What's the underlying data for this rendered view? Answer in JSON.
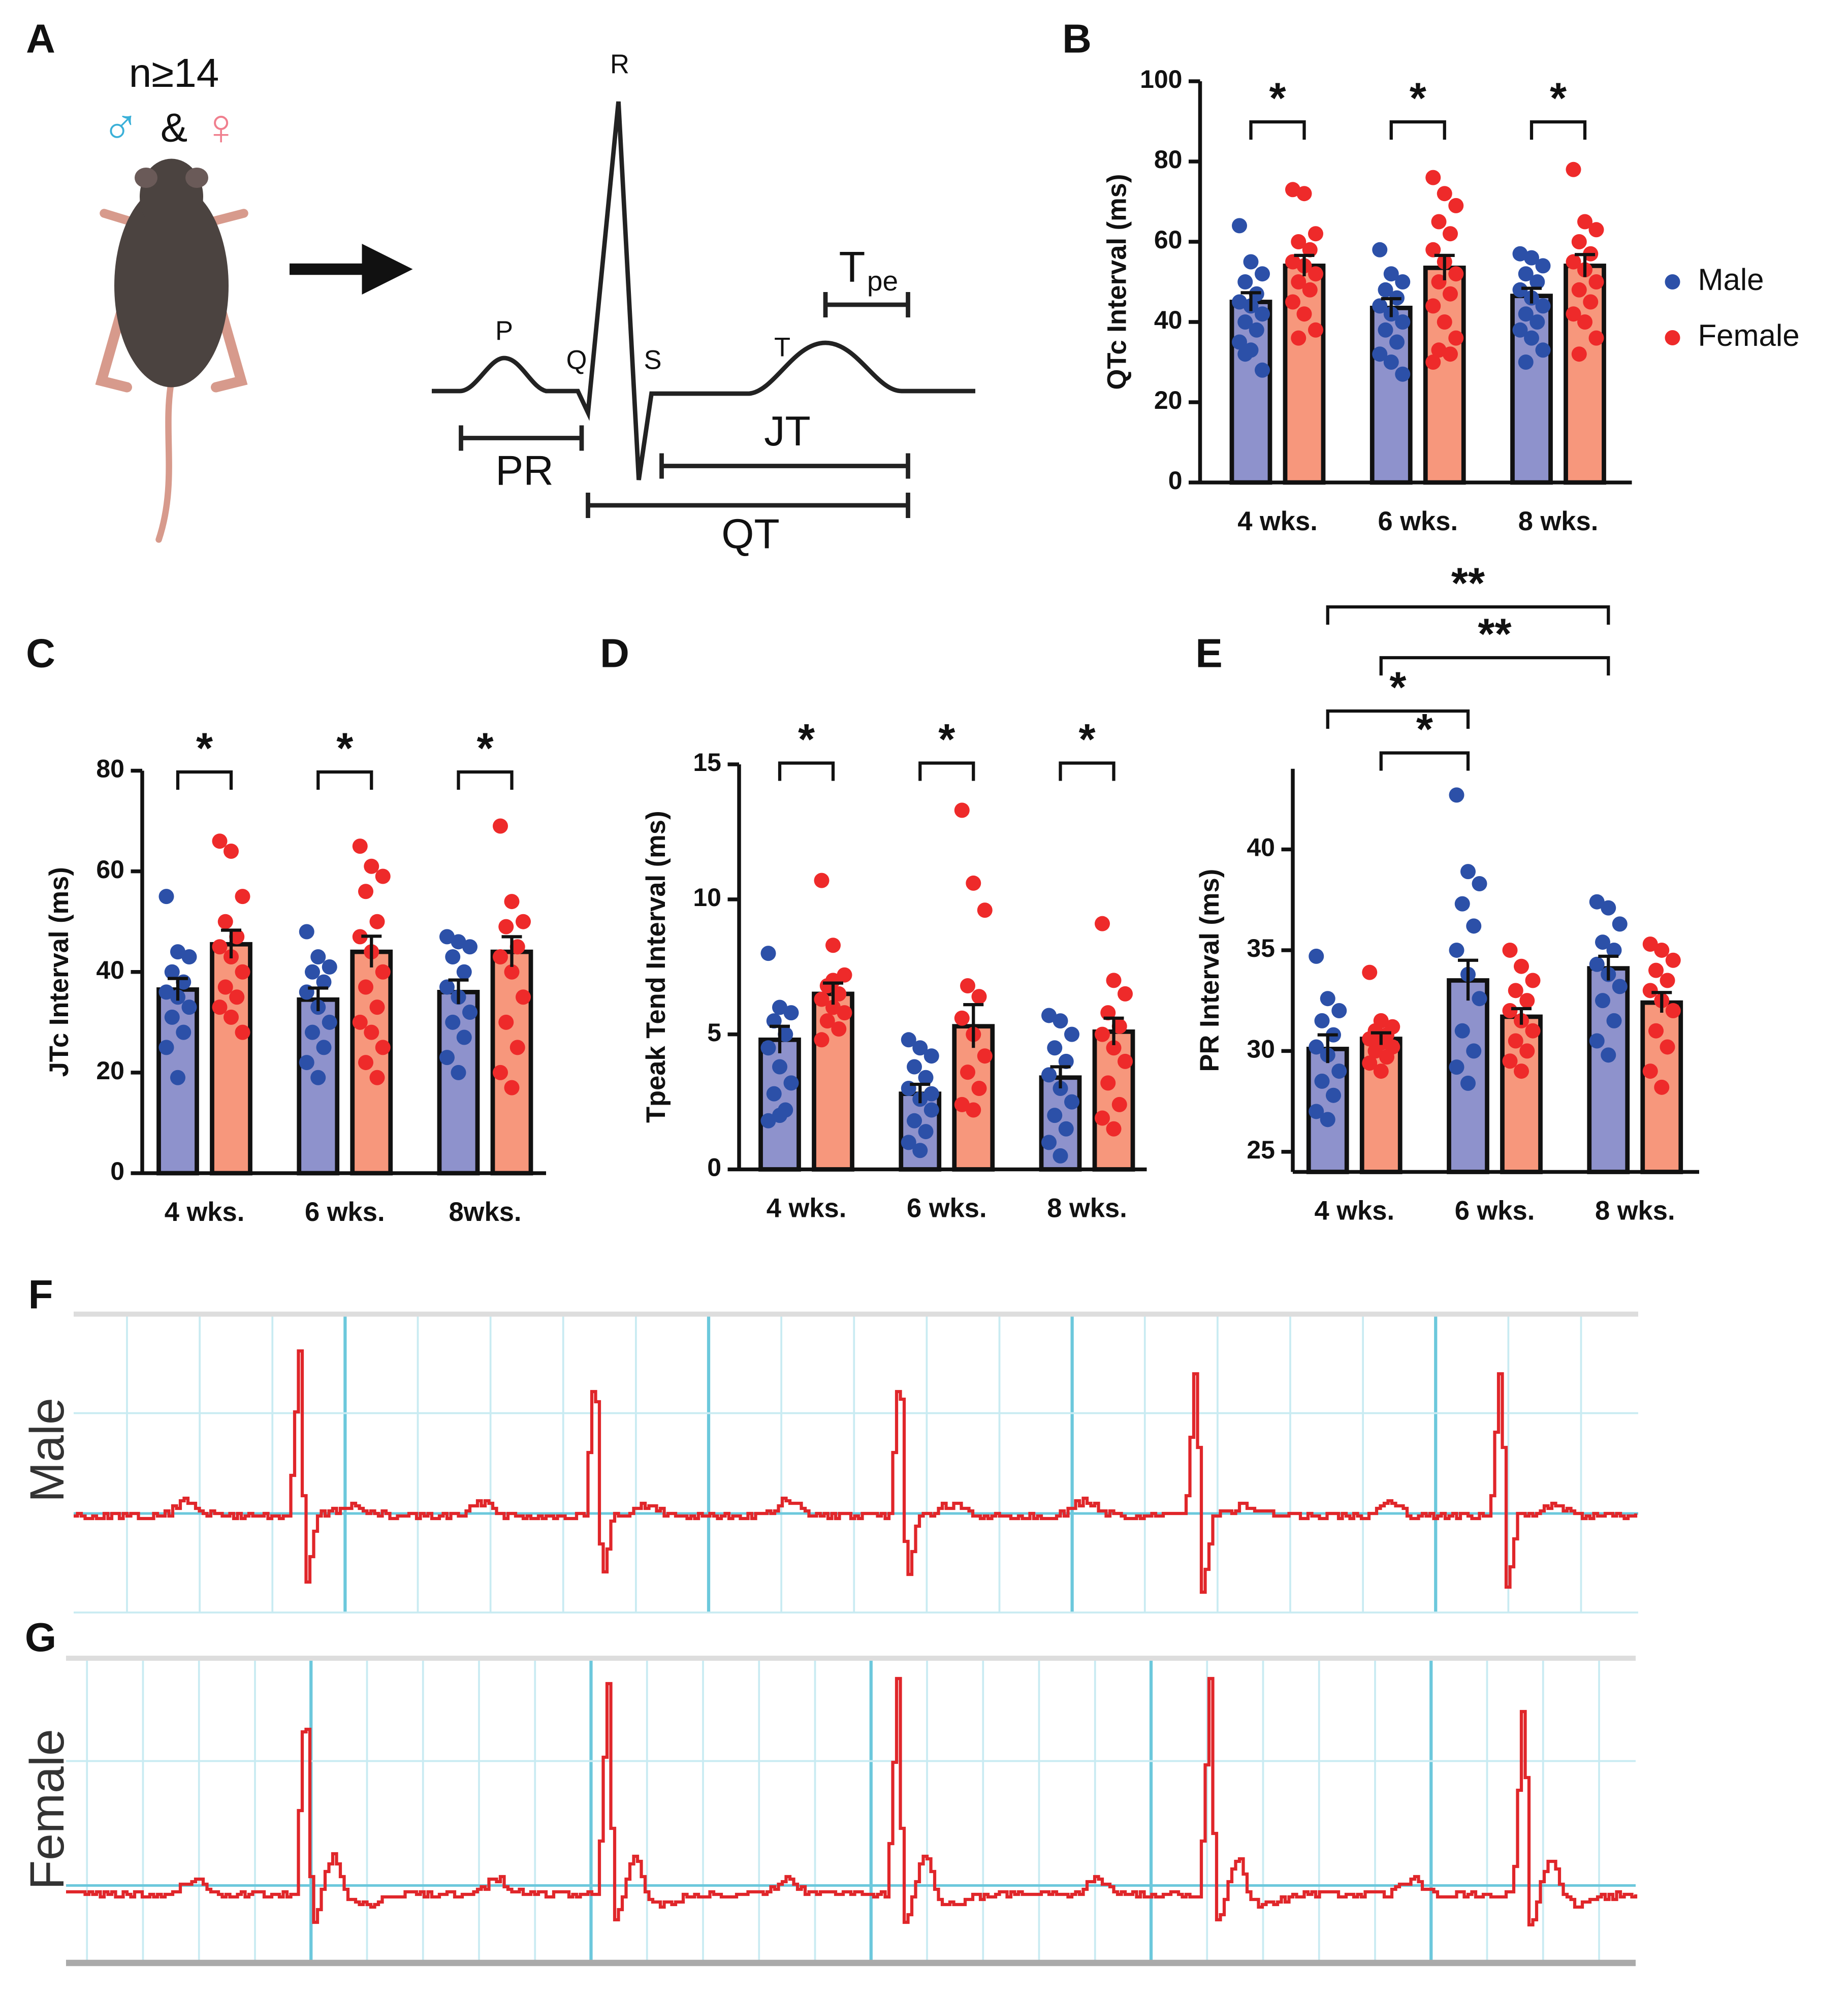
{
  "panel_a": {
    "label": "A",
    "n": "n≥14",
    "male_symbol": "♂",
    "and": "&",
    "female_symbol": "♀",
    "waves": [
      "P",
      "Q",
      "R",
      "S",
      "T"
    ],
    "tpe": {
      "main": "T",
      "sub": "pe"
    },
    "intervals": [
      "PR",
      "JT",
      "QT"
    ]
  },
  "chart_data": [
    {
      "panel": "B",
      "type": "bar",
      "ylabel": "QTc Interval (ms)",
      "categories": [
        "4 wks.",
        "6 wks.",
        "8 wks."
      ],
      "ylim": [
        0,
        100
      ],
      "yticks": [
        0,
        20,
        40,
        60,
        80,
        100
      ],
      "legend": "right",
      "series": [
        {
          "name": "Male",
          "color": "#2c50a8",
          "bar_color": "#8e92cc",
          "values": [
            45,
            43.5,
            46.5
          ],
          "errors": [
            2.3,
            2.3,
            1.9
          ],
          "points": [
            [
              64,
              55,
              52,
              50,
              47,
              45,
              44,
              42,
              40,
              38,
              35,
              33,
              28,
              32
            ],
            [
              58,
              52,
              50,
              48,
              46,
              44,
              42,
              40,
              38,
              35,
              32,
              30,
              27
            ],
            [
              57,
              56,
              54,
              52,
              50,
              48,
              46,
              44,
              42,
              40,
              38,
              36,
              33,
              30
            ]
          ]
        },
        {
          "name": "Female",
          "color": "#ee2a2a",
          "bar_color": "#f7977c",
          "values": [
            54,
            53.5,
            54
          ],
          "errors": [
            2.6,
            3.1,
            2.8
          ],
          "points": [
            [
              73,
              72,
              62,
              60,
              58,
              55,
              54,
              52,
              50,
              48,
              45,
              42,
              38,
              36
            ],
            [
              76,
              72,
              69,
              65,
              62,
              58,
              55,
              52,
              50,
              47,
              44,
              40,
              36,
              33,
              32,
              30
            ],
            [
              78,
              65,
              63,
              60,
              57,
              55,
              53,
              50,
              48,
              45,
              42,
              40,
              36,
              32
            ]
          ]
        }
      ],
      "comparisons": [
        {
          "label": "*",
          "from": [
            0,
            0
          ],
          "to": [
            0,
            1
          ]
        },
        {
          "label": "*",
          "from": [
            1,
            0
          ],
          "to": [
            1,
            1
          ]
        },
        {
          "label": "*",
          "from": [
            2,
            0
          ],
          "to": [
            2,
            1
          ]
        }
      ]
    },
    {
      "panel": "C",
      "type": "bar",
      "ylabel": "JTc Interval (ms)",
      "categories": [
        "4 wks.",
        "6 wks.",
        "8wks."
      ],
      "ylim": [
        0,
        80
      ],
      "yticks": [
        0,
        20,
        40,
        60,
        80
      ],
      "series": [
        {
          "name": "Male",
          "color": "#2c50a8",
          "bar_color": "#8e92cc",
          "values": [
            36.5,
            34.5,
            36
          ],
          "errors": [
            2.2,
            2.3,
            2.4
          ],
          "points": [
            [
              55,
              44,
              43,
              40,
              38,
              36,
              35,
              33,
              31,
              28,
              25,
              19
            ],
            [
              48,
              43,
              41,
              40,
              38,
              36,
              33,
              30,
              28,
              25,
              22,
              19
            ],
            [
              47,
              46,
              45,
              43,
              40,
              37,
              35,
              32,
              30,
              27,
              23,
              20
            ]
          ]
        },
        {
          "name": "Female",
          "color": "#ee2a2a",
          "bar_color": "#f7977c",
          "values": [
            45.5,
            44,
            44
          ],
          "errors": [
            2.8,
            3.1,
            3.0
          ],
          "points": [
            [
              66,
              64,
              55,
              50,
              47,
              45,
              43,
              40,
              37,
              35,
              33,
              31,
              28
            ],
            [
              65,
              61,
              59,
              56,
              50,
              47,
              44,
              40,
              37,
              33,
              30,
              28,
              25,
              22,
              19
            ],
            [
              69,
              54,
              50,
              49,
              45,
              43,
              40,
              35,
              30,
              25,
              20,
              17
            ]
          ]
        }
      ],
      "comparisons": [
        {
          "label": "*",
          "from": [
            0,
            0
          ],
          "to": [
            0,
            1
          ]
        },
        {
          "label": "*",
          "from": [
            1,
            0
          ],
          "to": [
            1,
            1
          ]
        },
        {
          "label": "*",
          "from": [
            2,
            0
          ],
          "to": [
            2,
            1
          ]
        }
      ]
    },
    {
      "panel": "D",
      "type": "bar",
      "ylabel": "Tpeak Tend Interval (ms)",
      "categories": [
        "4 wks.",
        "6 wks.",
        "8 wks."
      ],
      "ylim": [
        0,
        15
      ],
      "yticks": [
        0,
        5,
        10,
        15
      ],
      "series": [
        {
          "name": "Male",
          "color": "#2c50a8",
          "bar_color": "#8e92cc",
          "values": [
            4.8,
            2.8,
            3.4
          ],
          "errors": [
            0.5,
            0.35,
            0.4
          ],
          "points": [
            [
              8.0,
              6.0,
              5.8,
              5.5,
              5.0,
              4.5,
              3.8,
              3.2,
              2.8,
              2.2,
              1.8,
              2.0
            ],
            [
              4.8,
              4.5,
              4.2,
              3.8,
              3.4,
              3.0,
              2.6,
              2.2,
              1.8,
              1.4,
              1.0,
              0.7,
              2.8
            ],
            [
              5.7,
              5.5,
              5.0,
              4.5,
              4.0,
              3.5,
              3.0,
              2.5,
              2.0,
              1.5,
              1.0,
              0.5
            ]
          ]
        },
        {
          "name": "Female",
          "color": "#ee2a2a",
          "bar_color": "#f7977c",
          "values": [
            6.5,
            5.3,
            5.1
          ],
          "errors": [
            0.4,
            0.8,
            0.5
          ],
          "points": [
            [
              10.7,
              8.3,
              7.2,
              6.8,
              6.5,
              6.3,
              6.0,
              5.8,
              5.5,
              5.2,
              4.8,
              7.0
            ],
            [
              13.3,
              10.6,
              9.6,
              6.8,
              6.4,
              5.6,
              5.0,
              4.2,
              3.6,
              3.0,
              2.4,
              2.2
            ],
            [
              9.1,
              7.0,
              6.5,
              5.8,
              5.3,
              5.0,
              4.5,
              4.0,
              3.2,
              2.4,
              1.9,
              1.5
            ]
          ]
        }
      ],
      "comparisons": [
        {
          "label": "*",
          "from": [
            0,
            0
          ],
          "to": [
            0,
            1
          ]
        },
        {
          "label": "*",
          "from": [
            1,
            0
          ],
          "to": [
            1,
            1
          ]
        },
        {
          "label": "*",
          "from": [
            2,
            0
          ],
          "to": [
            2,
            1
          ]
        }
      ]
    },
    {
      "panel": "E",
      "type": "bar",
      "ylabel": "PR Interval (ms)",
      "categories": [
        "4 wks.",
        "6 wks.",
        "8 wks."
      ],
      "ylim": [
        24,
        44
      ],
      "yticks": [
        25,
        30,
        35,
        40
      ],
      "series": [
        {
          "name": "Male",
          "color": "#2c50a8",
          "bar_color": "#8e92cc",
          "values": [
            30.1,
            33.5,
            34.1
          ],
          "errors": [
            0.7,
            1.0,
            0.6
          ],
          "points": [
            [
              34.7,
              32.6,
              32.0,
              31.5,
              30.8,
              30.2,
              29.8,
              29.0,
              28.5,
              27.8,
              27.0,
              26.6
            ],
            [
              42.7,
              38.9,
              38.3,
              37.3,
              36.2,
              35.0,
              33.8,
              32.6,
              31.0,
              30.0,
              29.2,
              28.4
            ],
            [
              37.4,
              37.1,
              36.3,
              35.4,
              35.0,
              34.3,
              33.8,
              33.2,
              32.5,
              31.5,
              30.5,
              29.8
            ]
          ]
        },
        {
          "name": "Female",
          "color": "#ee2a2a",
          "bar_color": "#f7977c",
          "values": [
            30.6,
            31.7,
            32.4
          ],
          "errors": [
            0.3,
            0.4,
            0.5
          ],
          "points": [
            [
              33.9,
              31.5,
              31.2,
              31.0,
              30.8,
              30.6,
              30.4,
              30.2,
              30.0,
              29.7,
              29.4,
              29.0
            ],
            [
              35.0,
              34.2,
              33.5,
              33.0,
              32.5,
              32.0,
              31.5,
              31.0,
              30.5,
              30.0,
              29.5,
              29.0
            ],
            [
              35.3,
              35.0,
              34.5,
              34.0,
              33.5,
              33.0,
              32.5,
              32.0,
              31.0,
              30.2,
              29.0,
              28.2
            ]
          ]
        }
      ],
      "comparisons": [
        {
          "label": "*",
          "from": [
            0,
            1
          ],
          "to": [
            1,
            0
          ]
        },
        {
          "label": "*",
          "from": [
            0,
            0
          ],
          "to": [
            1,
            0
          ]
        },
        {
          "label": "**",
          "from": [
            0,
            1
          ],
          "to": [
            2,
            0
          ]
        },
        {
          "label": "**",
          "from": [
            0,
            0
          ],
          "to": [
            2,
            0
          ]
        }
      ]
    }
  ],
  "traces": [
    {
      "label": "F",
      "name": "Male"
    },
    {
      "label": "G",
      "name": "Female"
    }
  ]
}
